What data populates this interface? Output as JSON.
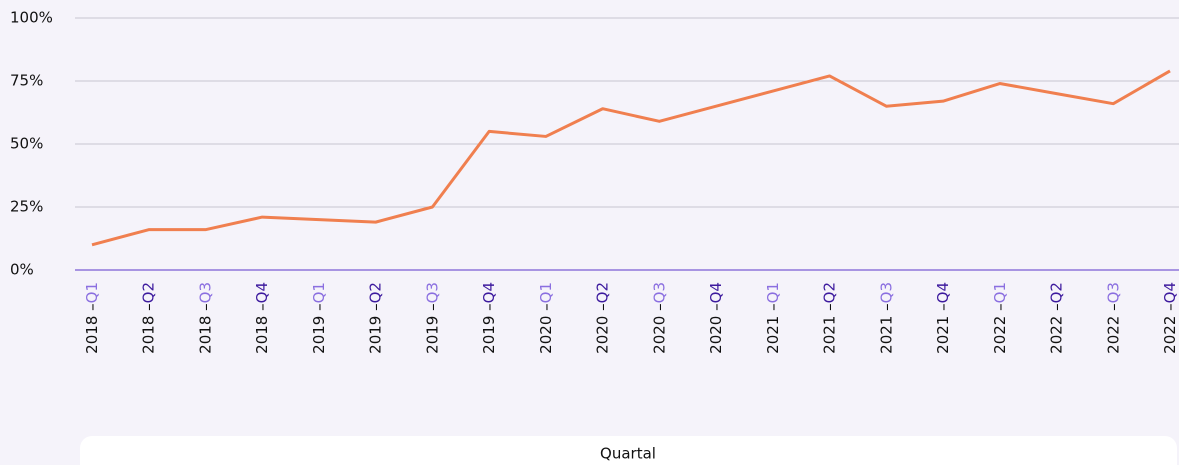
{
  "chart_data": {
    "type": "line",
    "x_label": "Quartal",
    "categories": [
      "2018 –Q1",
      "2018 –Q2",
      "2018 –Q3",
      "2018 –Q4",
      "2019 –Q1",
      "2019 –Q2",
      "2019 –Q3",
      "2019 –Q4",
      "2020 –Q1",
      "2020 –Q2",
      "2020 –Q3",
      "2020 –Q4",
      "2021 –Q1",
      "2021 –Q2",
      "2021 –Q3",
      "2021 –Q4",
      "2022 –Q1",
      "2022 –Q2",
      "2022 –Q3",
      "2022 –Q4"
    ],
    "values": [
      10,
      16,
      16,
      21,
      20,
      19,
      25,
      55,
      53,
      64,
      59,
      65,
      71,
      77,
      65,
      67,
      74,
      70,
      66,
      79
    ],
    "color": "#f07f4f",
    "ylim": [
      0,
      100
    ],
    "yticks": [
      {
        "value": 0,
        "label": "0%"
      },
      {
        "value": 25,
        "label": "25%"
      },
      {
        "value": 50,
        "label": "50%"
      },
      {
        "value": 75,
        "label": "75%"
      },
      {
        "value": 100,
        "label": "100%"
      }
    ],
    "grid": true
  }
}
